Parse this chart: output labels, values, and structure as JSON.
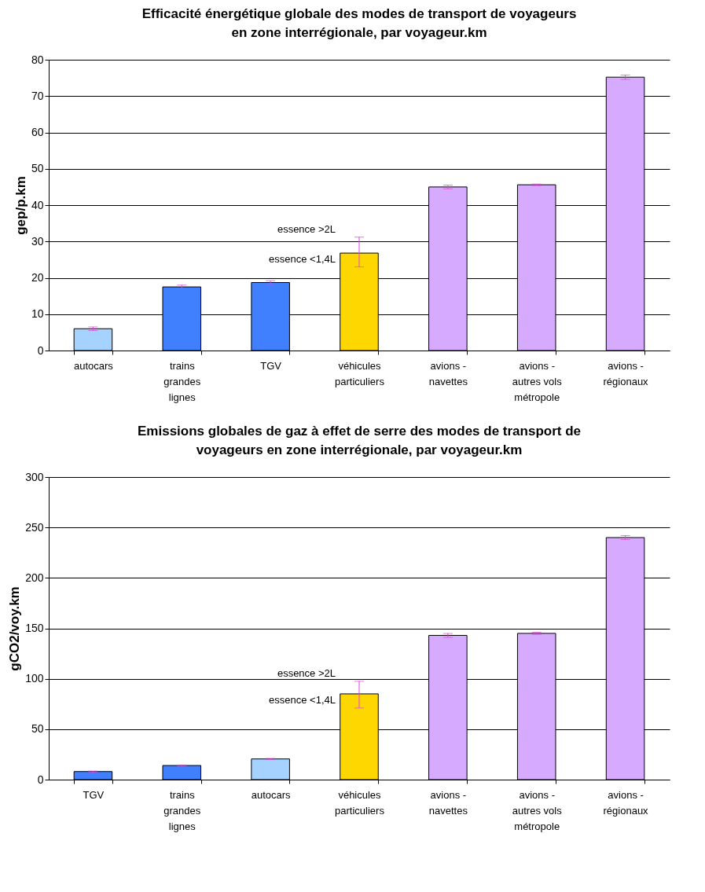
{
  "chart_data": [
    {
      "type": "bar",
      "title": "Efficacité énergétique globale des modes de transport de voyageurs en zone interrégionale, par voyageur.km",
      "ylabel": "gep/p.km",
      "categories": [
        "autocars",
        "trains grandes lignes",
        "TGV",
        "véhicules particuliers",
        "avions - navettes",
        "avions - autres vols métropole",
        "avions - régionaux"
      ],
      "values": [
        6,
        17.5,
        18.7,
        26.8,
        45,
        45.6,
        75.2
      ],
      "colors": [
        "#a6d2ff",
        "#4080ff",
        "#4080ff",
        "#ffd700",
        "#d6aaff",
        "#d6aaff",
        "#d6aaff"
      ],
      "errors": [
        0.5,
        0.5,
        0.5,
        [
          23,
          31.2
        ],
        0.5,
        0.2,
        0.6
      ],
      "annotations": [
        "essence >2L",
        "essence <1,4L"
      ],
      "ylim": [
        0,
        80
      ],
      "yticks": [
        0,
        10,
        20,
        30,
        40,
        50,
        60,
        70,
        80
      ],
      "grid": "y"
    },
    {
      "type": "bar",
      "title": "Emissions globales de gaz à effet de serre des modes de transport de voyageurs en zone interrégionale, par voyageur.km",
      "ylabel": "gCO2/voy.km",
      "categories": [
        "TGV",
        "trains grandes lignes",
        "autocars",
        "véhicules particuliers",
        "avions - navettes",
        "avions - autres vols métropole",
        "avions - régionaux"
      ],
      "values": [
        8,
        14,
        20.5,
        85,
        143,
        145,
        240
      ],
      "colors": [
        "#4080ff",
        "#4080ff",
        "#a6d2ff",
        "#ffd700",
        "#d6aaff",
        "#d6aaff",
        "#d6aaff"
      ],
      "errors": [
        0.5,
        0.5,
        0.5,
        [
          71,
          97.5
        ],
        2,
        1,
        2
      ],
      "annotations": [
        "essence >2L",
        "essence <1,4L"
      ],
      "ylim": [
        0,
        300
      ],
      "yticks": [
        0,
        50,
        100,
        150,
        200,
        250,
        300
      ],
      "grid": "y"
    }
  ]
}
